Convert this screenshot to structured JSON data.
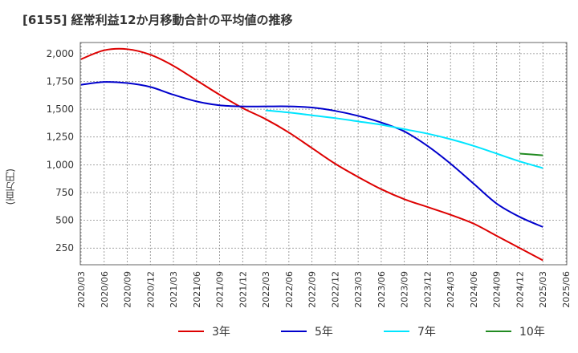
{
  "chart_data": {
    "type": "line",
    "title": "[6155]  経常利益12か月移動合計の平均値の推移",
    "ylabel": "(百万円)",
    "xlabel": "",
    "ylim": [
      100,
      2100
    ],
    "yticks": [
      250,
      500,
      750,
      1000,
      1250,
      1500,
      1750,
      2000
    ],
    "ytick_labels": [
      "250",
      "500",
      "750",
      "1,000",
      "1,250",
      "1,500",
      "1,750",
      "2,000"
    ],
    "x_tick_labels": [
      "2020/03",
      "2020/06",
      "2020/09",
      "2020/12",
      "2021/03",
      "2021/06",
      "2021/09",
      "2021/12",
      "2022/03",
      "2022/06",
      "2022/09",
      "2022/12",
      "2023/03",
      "2023/06",
      "2023/09",
      "2023/12",
      "2024/03",
      "2024/06",
      "2024/09",
      "2024/12",
      "2025/03",
      "2025/06"
    ],
    "grid": true,
    "legend_position": "bottom",
    "series": [
      {
        "name": "3年",
        "color": "#dd0000",
        "x": [
          "2020/03",
          "2020/06",
          "2020/09",
          "2020/12",
          "2021/03",
          "2021/06",
          "2021/09",
          "2021/12",
          "2022/03",
          "2022/06",
          "2022/09",
          "2022/12",
          "2023/03",
          "2023/06",
          "2023/09",
          "2023/12",
          "2024/03",
          "2024/06",
          "2024/09",
          "2024/12",
          "2025/03"
        ],
        "values": [
          1950,
          2030,
          2040,
          1990,
          1890,
          1760,
          1630,
          1510,
          1410,
          1290,
          1150,
          1010,
          890,
          780,
          690,
          620,
          550,
          470,
          360,
          250,
          140
        ]
      },
      {
        "name": "5年",
        "color": "#0000cc",
        "x": [
          "2020/03",
          "2020/06",
          "2020/09",
          "2020/12",
          "2021/03",
          "2021/06",
          "2021/09",
          "2021/12",
          "2022/03",
          "2022/06",
          "2022/09",
          "2022/12",
          "2023/03",
          "2023/06",
          "2023/09",
          "2023/12",
          "2024/03",
          "2024/06",
          "2024/09",
          "2024/12",
          "2025/03"
        ],
        "values": [
          1720,
          1745,
          1735,
          1700,
          1630,
          1570,
          1535,
          1525,
          1525,
          1525,
          1515,
          1485,
          1440,
          1380,
          1300,
          1170,
          1010,
          830,
          650,
          530,
          440
        ]
      },
      {
        "name": "7年",
        "color": "#00e5ff",
        "x": [
          "2022/03",
          "2022/06",
          "2022/09",
          "2022/12",
          "2023/03",
          "2023/06",
          "2023/09",
          "2023/12",
          "2024/03",
          "2024/06",
          "2024/09",
          "2024/12",
          "2025/03"
        ],
        "values": [
          1490,
          1470,
          1445,
          1420,
          1390,
          1360,
          1320,
          1280,
          1230,
          1170,
          1100,
          1030,
          970
        ]
      },
      {
        "name": "10年",
        "color": "#228b22",
        "x": [
          "2024/12",
          "2025/03"
        ],
        "values": [
          1100,
          1085
        ]
      }
    ]
  }
}
